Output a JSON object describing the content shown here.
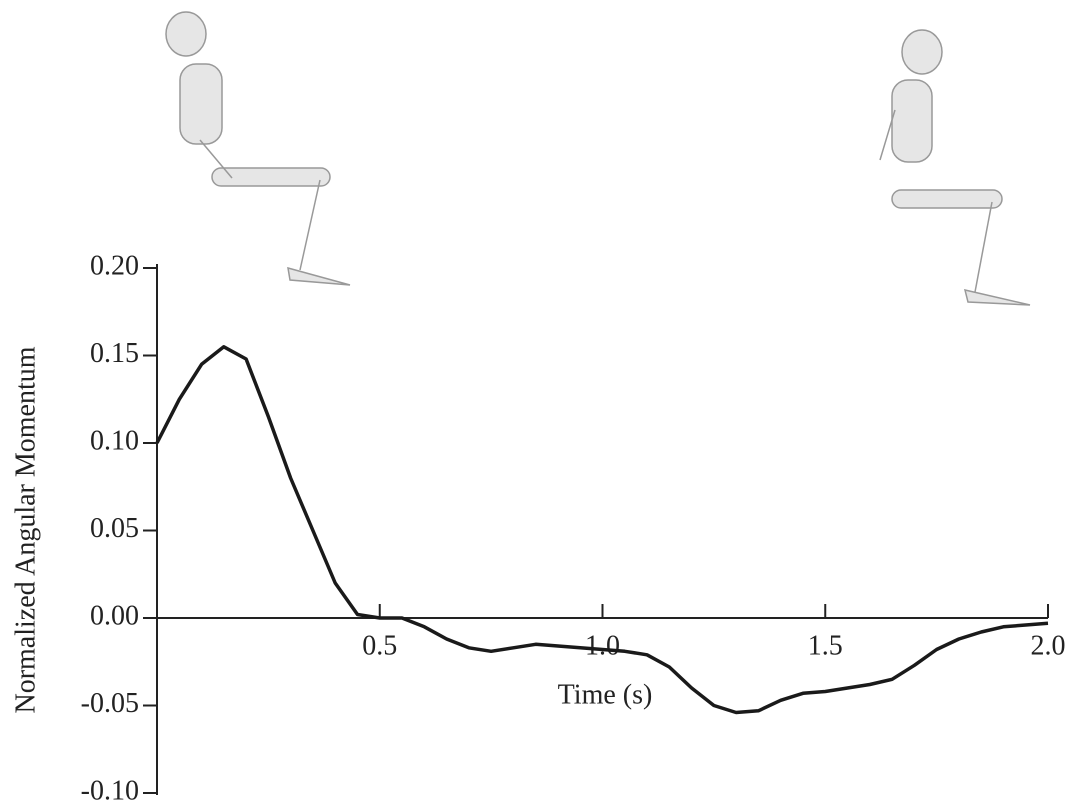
{
  "chart_data": {
    "type": "line",
    "xlabel": "Time (s)",
    "ylabel": "Normalized Angular Momentum",
    "x": [
      0,
      0.05,
      0.1,
      0.15,
      0.2,
      0.25,
      0.3,
      0.35,
      0.4,
      0.45,
      0.5,
      0.55,
      0.6,
      0.65,
      0.7,
      0.75,
      0.8,
      0.85,
      0.9,
      0.95,
      1.0,
      1.05,
      1.1,
      1.15,
      1.2,
      1.25,
      1.3,
      1.35,
      1.4,
      1.45,
      1.5,
      1.55,
      1.6,
      1.65,
      1.7,
      1.75,
      1.8,
      1.85,
      1.9,
      1.95,
      2.0
    ],
    "values": [
      0.1,
      0.125,
      0.145,
      0.155,
      0.148,
      0.115,
      0.08,
      0.05,
      0.02,
      0.002,
      0.0,
      0.0,
      -0.005,
      -0.012,
      -0.017,
      -0.019,
      -0.017,
      -0.015,
      -0.016,
      -0.017,
      -0.018,
      -0.019,
      -0.021,
      -0.028,
      -0.04,
      -0.05,
      -0.054,
      -0.053,
      -0.047,
      -0.043,
      -0.042,
      -0.04,
      -0.038,
      -0.035,
      -0.027,
      -0.018,
      -0.012,
      -0.008,
      -0.005,
      -0.004,
      -0.003
    ],
    "color": "#1a1a1a",
    "xlim": [
      0,
      2
    ],
    "xticks": [
      0.5,
      {
        "value": 1,
        "label": "1.0"
      },
      1.5,
      {
        "value": 2,
        "label": "2.0"
      }
    ],
    "ylim": [
      -0.1,
      0.2
    ],
    "yticks": [
      {
        "value": 0.2,
        "label": "0.20"
      },
      0.15,
      {
        "value": 0.1,
        "label": "0.10"
      },
      0.05,
      {
        "value": 0,
        "label": "0.00"
      },
      -0.05,
      {
        "value": -0.1,
        "label": "-0.10"
      }
    ]
  }
}
